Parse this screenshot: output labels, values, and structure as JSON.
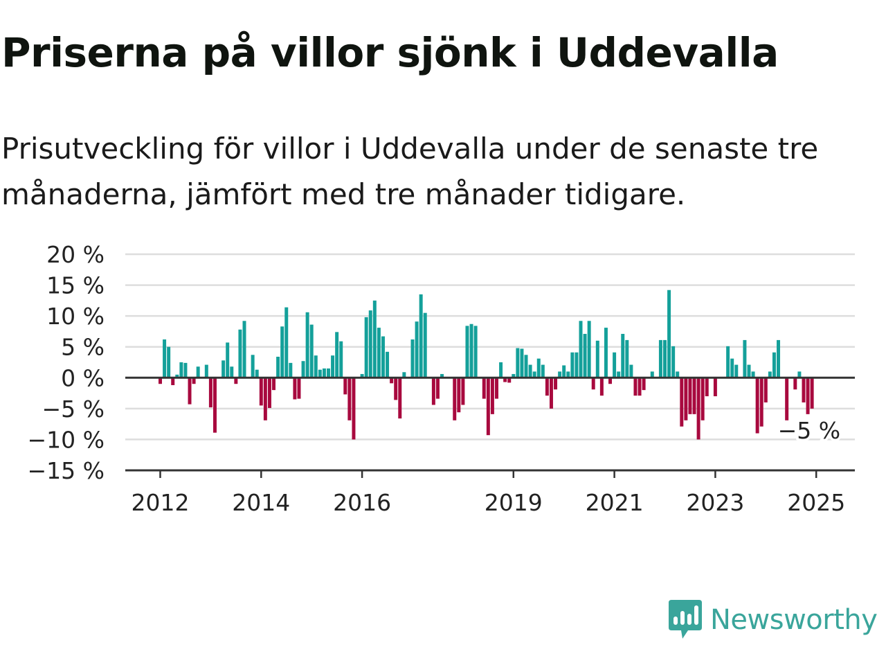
{
  "header": {
    "title": "Priserna på villor sjönk i Uddevalla",
    "subtitle": "Prisutveckling för villor i Uddevalla under de senaste tre månaderna, jämfört med tre månader tidigare."
  },
  "brand": {
    "name": "Newsworthy",
    "color": "#3aa59b"
  },
  "colors": {
    "positive": "#14a09a",
    "negative": "#a8093e",
    "grid": "#dddddd",
    "axis": "#333333"
  },
  "chart_data": {
    "type": "bar",
    "title": "",
    "xlabel": "",
    "ylabel": "",
    "ylim": [
      -15,
      20
    ],
    "y_ticks": [
      {
        "value": 20,
        "label": "20 %"
      },
      {
        "value": 15,
        "label": "15 %"
      },
      {
        "value": 10,
        "label": "10 %"
      },
      {
        "value": 5,
        "label": "5 %"
      },
      {
        "value": 0,
        "label": "0 %"
      },
      {
        "value": -5,
        "label": "−5 %"
      },
      {
        "value": -10,
        "label": "−10 %"
      },
      {
        "value": -15,
        "label": "−15 %"
      }
    ],
    "x_ticks": [
      "2012",
      "2014",
      "2016",
      "2019",
      "2021",
      "2023",
      "2025"
    ],
    "start": "2012-01",
    "frequency": "monthly",
    "grid": true,
    "last_value_label": "−5 %",
    "values": [
      -1,
      6.2,
      5,
      -1.2,
      0.5,
      2.5,
      2.4,
      -4.3,
      -1,
      1.8,
      0,
      2.1,
      -4.8,
      -8.9,
      0,
      2.8,
      5.7,
      1.8,
      -1,
      7.8,
      9.2,
      0,
      3.7,
      1.3,
      -4.5,
      -6.9,
      -4.9,
      -2,
      3.4,
      8.3,
      11.4,
      2.4,
      -3.5,
      -3.4,
      2.7,
      10.6,
      8.6,
      3.6,
      1.3,
      1.5,
      1.5,
      3.6,
      7.4,
      5.9,
      -2.7,
      -6.9,
      -10,
      0,
      0.6,
      9.8,
      10.9,
      12.5,
      8.1,
      6.7,
      4.2,
      -0.9,
      -3.6,
      -6.6,
      0.9,
      0,
      6.2,
      9.1,
      13.5,
      10.5,
      0,
      -4.4,
      -3.4,
      0.6,
      0,
      0,
      -6.9,
      -5.6,
      -4.4,
      8.4,
      8.7,
      8.4,
      0,
      -3.4,
      -9.3,
      -5.9,
      -3.4,
      2.5,
      -0.7,
      -0.8,
      0.6,
      4.8,
      4.7,
      3.7,
      2.1,
      1,
      3.1,
      2.1,
      -2.9,
      -5,
      -1.9,
      1,
      2,
      1,
      4.1,
      4.1,
      9.2,
      7.1,
      9.2,
      -1.9,
      6,
      -2.9,
      8.1,
      -1,
      4.1,
      1,
      7.1,
      6.1,
      2.1,
      -2.9,
      -2.9,
      -2,
      0,
      1,
      0,
      6.1,
      6.1,
      14.2,
      5.1,
      1,
      -7.9,
      -6.9,
      -5.9,
      -5.9,
      -10,
      -6.9,
      -3,
      0,
      -3,
      0,
      0,
      5.1,
      3.1,
      2.1,
      0,
      6.1,
      2.1,
      1,
      -9,
      -7.9,
      -4,
      1,
      4.1,
      6.1,
      0,
      -6.9,
      0,
      -1.9,
      1,
      -4,
      -5.9,
      -5
    ]
  }
}
